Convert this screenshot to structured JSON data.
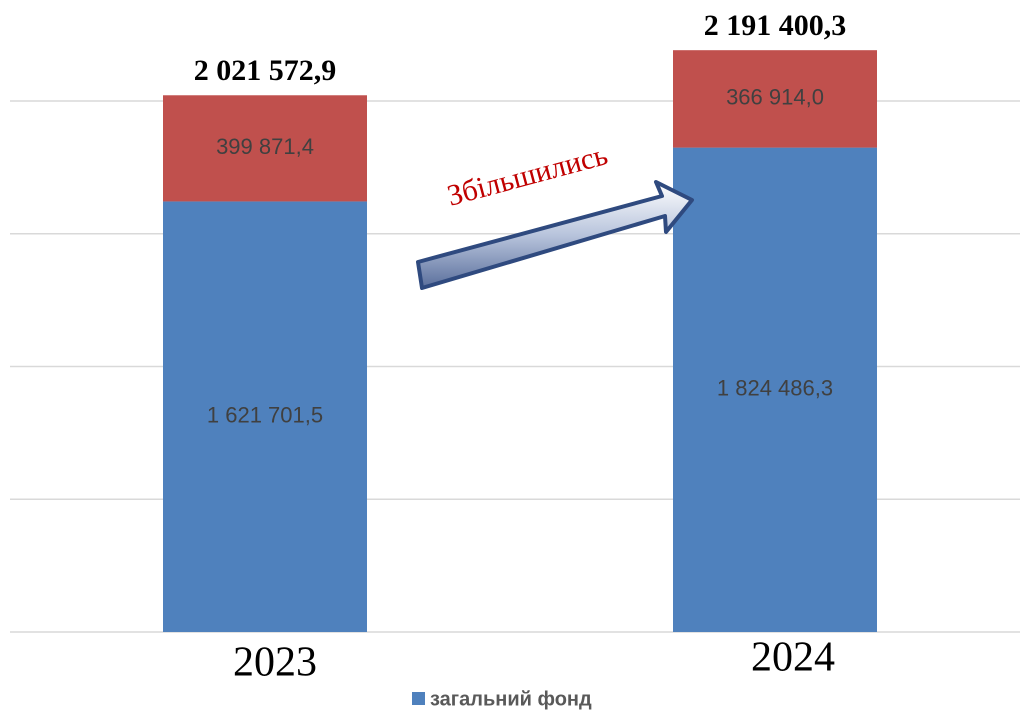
{
  "chart_data": {
    "type": "stacked_bar",
    "categories": [
      "2023",
      "2024"
    ],
    "series": [
      {
        "name": "загальний фонд",
        "color": "#4f81bd",
        "values": [
          1621701.5,
          1824486.3
        ],
        "value_labels": [
          "1 621 701,5",
          "1 824 486,3"
        ]
      },
      {
        "color": "#c0504d",
        "values": [
          399871.4,
          366914.0
        ],
        "value_labels": [
          "399 871,4",
          "366 914,0"
        ]
      }
    ],
    "totals": [
      2021572.9,
      2191400.3
    ],
    "total_labels": [
      "2 021 572,9",
      "2 191 400,3"
    ],
    "annotation": "Збільшились",
    "ylim": [
      0,
      2500000
    ],
    "yticks": [
      0,
      500000,
      1000000,
      1500000,
      2000000
    ],
    "grid": true,
    "legend": "bottom"
  }
}
